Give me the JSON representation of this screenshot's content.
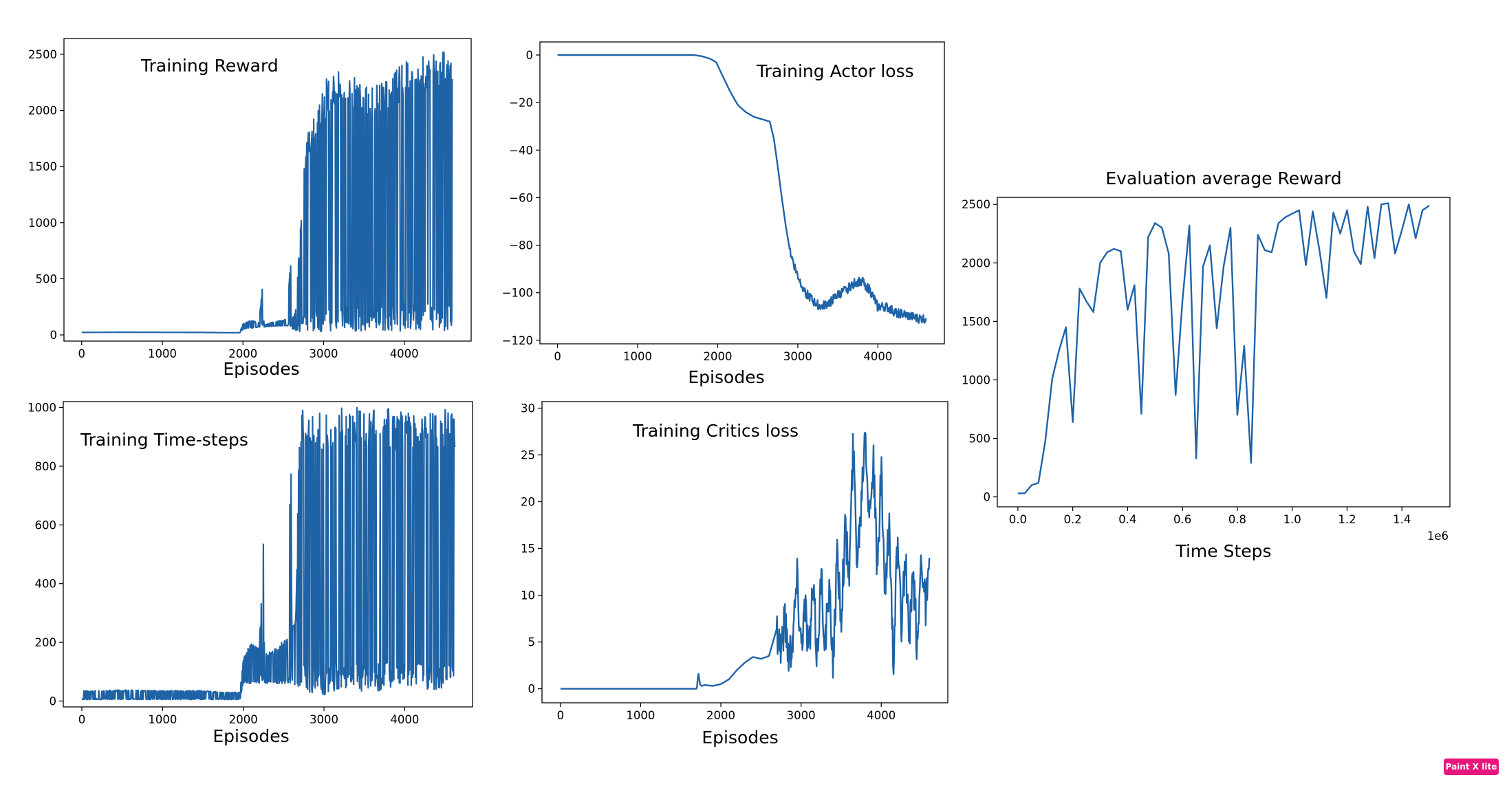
{
  "watermark": "Paint X lite",
  "line_color": "#1f63a7",
  "chart_data": [
    {
      "id": "reward",
      "type": "line",
      "title": "Training Reward",
      "xlabel": "Episodes",
      "ylabel": "",
      "xlim": [
        -220,
        4830
      ],
      "ylim": [
        -55,
        2640
      ],
      "xticks": [
        0,
        1000,
        2000,
        3000,
        4000
      ],
      "yticks": [
        0,
        500,
        1000,
        1500,
        2000,
        2500
      ],
      "xtick_labels": [
        "0",
        "1000",
        "2000",
        "3000",
        "4000"
      ],
      "ytick_labels": [
        "0",
        "500",
        "1000",
        "1500",
        "2000",
        "2500"
      ],
      "series": [
        {
          "x": [
            0,
            500,
            1000,
            1500,
            1750,
            1960,
            2000,
            2100,
            2200,
            2250,
            2260,
            2400,
            2550,
            2590,
            2600,
            2650,
            2700,
            2750,
            2800,
            2900,
            3000,
            3050,
            3100,
            3200,
            3300,
            3400,
            3500,
            3600,
            3700,
            3800,
            3900,
            4000,
            4100,
            4200,
            4300,
            4400,
            4500,
            4600
          ],
          "y": [
            22,
            24,
            23,
            22,
            20,
            20,
            100,
            130,
            110,
            500,
            90,
            120,
            140,
            770,
            150,
            200,
            800,
            1500,
            1800,
            2000,
            2200,
            2330,
            2330,
            2350,
            2300,
            2320,
            2280,
            2290,
            2300,
            2340,
            2380,
            2450,
            2460,
            2480,
            2510,
            2530,
            2560,
            2540
          ],
          "y_low": [
            22,
            24,
            23,
            22,
            20,
            20,
            50,
            60,
            70,
            80,
            70,
            80,
            80,
            70,
            60,
            40,
            30,
            25,
            20,
            25,
            30,
            40,
            35,
            30,
            40,
            30,
            30,
            35,
            30,
            40,
            30,
            40,
            50,
            30,
            40,
            40,
            30,
            80
          ]
        }
      ]
    },
    {
      "id": "actor",
      "type": "line",
      "title": "Training Actor loss",
      "xlabel": "Episodes",
      "ylabel": "",
      "xlim": [
        -220,
        4830
      ],
      "ylim": [
        -121.5,
        5.5
      ],
      "xticks": [
        0,
        1000,
        2000,
        3000,
        4000
      ],
      "yticks": [
        0,
        -20,
        -40,
        -60,
        -80,
        -100,
        -120
      ],
      "xtick_labels": [
        "0",
        "1000",
        "2000",
        "3000",
        "4000"
      ],
      "ytick_labels": [
        "0",
        "−20",
        "−40",
        "−60",
        "−80",
        "−100",
        "−120"
      ],
      "series": [
        {
          "x": [
            0,
            1000,
            1700,
            1800,
            1900,
            1980,
            2050,
            2150,
            2250,
            2350,
            2450,
            2550,
            2650,
            2700,
            2750,
            2800,
            2850,
            2900,
            2950,
            3000,
            3100,
            3200,
            3300,
            3400,
            3500,
            3600,
            3700,
            3800,
            3900,
            4000,
            4100,
            4200,
            4300,
            4400,
            4500,
            4600
          ],
          "y": [
            0,
            0,
            0,
            -0.5,
            -1.5,
            -3,
            -8,
            -15,
            -21,
            -24,
            -26,
            -27,
            -28,
            -35,
            -47,
            -60,
            -72,
            -82,
            -88,
            -93,
            -100,
            -104,
            -106,
            -104,
            -101,
            -99,
            -96,
            -95,
            -99,
            -106,
            -106,
            -108,
            -109,
            -110,
            -111,
            -111
          ]
        }
      ]
    },
    {
      "id": "timesteps",
      "type": "line",
      "title": "Training Time-steps",
      "xlabel": "Episodes",
      "ylabel": "",
      "xlim": [
        -230,
        4840
      ],
      "ylim": [
        -20,
        1020
      ],
      "xticks": [
        0,
        1000,
        2000,
        3000,
        4000
      ],
      "yticks": [
        0,
        200,
        400,
        600,
        800,
        1000
      ],
      "xtick_labels": [
        "0",
        "1000",
        "2000",
        "3000",
        "4000"
      ],
      "ytick_labels": [
        "0",
        "200",
        "400",
        "600",
        "800",
        "1000"
      ],
      "series": [
        {
          "x": [
            0,
            500,
            1000,
            1500,
            1750,
            1960,
            2000,
            2100,
            2200,
            2250,
            2260,
            2400,
            2550,
            2590,
            2600,
            2650,
            2700,
            2800,
            2900,
            3000,
            3100,
            3200,
            3300,
            3400,
            3500,
            3600,
            3700,
            3800,
            3900,
            4000,
            4100,
            4200,
            4300,
            4400,
            4500,
            4620
          ],
          "y": [
            35,
            38,
            36,
            36,
            30,
            30,
            150,
            200,
            180,
            600,
            160,
            180,
            220,
            950,
            240,
            300,
            1000,
            1000,
            1000,
            1000,
            1000,
            1000,
            1000,
            1000,
            1000,
            1000,
            1000,
            1000,
            1000,
            1000,
            1000,
            1000,
            1000,
            1000,
            1000,
            1000
          ],
          "y_low": [
            5,
            5,
            5,
            5,
            5,
            5,
            60,
            60,
            60,
            60,
            60,
            60,
            60,
            60,
            60,
            40,
            40,
            30,
            20,
            20,
            30,
            40,
            30,
            40,
            30,
            40,
            30,
            40,
            40,
            30,
            40,
            40,
            40,
            40,
            40,
            60
          ]
        }
      ]
    },
    {
      "id": "critics",
      "type": "line",
      "title": "Training Critics loss",
      "xlabel": "Episodes",
      "ylabel": "",
      "xlim": [
        -230,
        4830
      ],
      "ylim": [
        -1.5,
        30.7
      ],
      "xticks": [
        0,
        1000,
        2000,
        3000,
        4000
      ],
      "yticks": [
        0,
        5,
        10,
        15,
        20,
        25,
        30
      ],
      "xtick_labels": [
        "0",
        "1000",
        "2000",
        "3000",
        "4000"
      ],
      "ytick_labels": [
        "0",
        "5",
        "10",
        "15",
        "20",
        "25",
        "30"
      ],
      "series": [
        {
          "x": [
            0,
            1000,
            1700,
            1720,
            1740,
            1760,
            1800,
            1900,
            2000,
            2100,
            2200,
            2300,
            2400,
            2500,
            2600,
            2700,
            2750,
            2800,
            2850,
            2900,
            2950,
            3000,
            3050,
            3100,
            3150,
            3200,
            3250,
            3300,
            3350,
            3400,
            3450,
            3500,
            3550,
            3600,
            3650,
            3700,
            3750,
            3800,
            3850,
            3900,
            3950,
            4000,
            4050,
            4100,
            4150,
            4200,
            4250,
            4300,
            4350,
            4400,
            4450,
            4500,
            4550,
            4600
          ],
          "y": [
            0,
            0,
            0,
            1.7,
            0.5,
            0.3,
            0.4,
            0.3,
            0.5,
            1.0,
            2.0,
            2.8,
            3.4,
            3.2,
            3.5,
            6.5,
            4.5,
            7.5,
            3.5,
            6.0,
            12.0,
            5.0,
            9.0,
            4.0,
            10.5,
            3.5,
            12.0,
            5.0,
            10.0,
            3.0,
            14.0,
            8.0,
            17.0,
            12.0,
            26.0,
            14.0,
            20.0,
            29.0,
            18.0,
            25.0,
            12.0,
            23.0,
            9.0,
            18.0,
            3.0,
            15.0,
            7.0,
            14.0,
            5.0,
            12.0,
            4.0,
            15.0,
            9.0,
            12.0
          ]
        }
      ]
    },
    {
      "id": "eval",
      "type": "line",
      "title": "Evaluation average Reward",
      "xlabel": "Time Steps",
      "ylabel": "",
      "offset_text": "1e6",
      "xlim": [
        -0.075,
        1.575
      ],
      "ylim": [
        -85,
        2560
      ],
      "xticks": [
        0.0,
        0.2,
        0.4,
        0.6,
        0.8,
        1.0,
        1.2,
        1.4
      ],
      "yticks": [
        0,
        500,
        1000,
        1500,
        2000,
        2500
      ],
      "xtick_labels": [
        "0.0",
        "0.2",
        "0.4",
        "0.6",
        "0.8",
        "1.0",
        "1.2",
        "1.4"
      ],
      "ytick_labels": [
        "0",
        "500",
        "1000",
        "1500",
        "2000",
        "2500"
      ],
      "series": [
        {
          "x": [
            0.0,
            0.025,
            0.05,
            0.075,
            0.1,
            0.125,
            0.15,
            0.175,
            0.2,
            0.225,
            0.25,
            0.275,
            0.3,
            0.325,
            0.35,
            0.375,
            0.4,
            0.425,
            0.45,
            0.475,
            0.5,
            0.525,
            0.55,
            0.575,
            0.6,
            0.625,
            0.65,
            0.675,
            0.7,
            0.725,
            0.75,
            0.775,
            0.8,
            0.825,
            0.85,
            0.875,
            0.9,
            0.925,
            0.95,
            0.975,
            1.0,
            1.025,
            1.05,
            1.075,
            1.1,
            1.125,
            1.15,
            1.175,
            1.2,
            1.225,
            1.25,
            1.275,
            1.3,
            1.325,
            1.35,
            1.375,
            1.4,
            1.425,
            1.45,
            1.475,
            1.5
          ],
          "y": [
            30,
            30,
            100,
            120,
            480,
            1010,
            1250,
            1450,
            640,
            1780,
            1670,
            1580,
            2000,
            2090,
            2120,
            2100,
            1600,
            1810,
            710,
            2220,
            2340,
            2300,
            2080,
            870,
            1680,
            2320,
            330,
            1970,
            2150,
            1440,
            1970,
            2300,
            700,
            1290,
            290,
            2240,
            2110,
            2090,
            2340,
            2390,
            2420,
            2450,
            1980,
            2440,
            2100,
            1700,
            2430,
            2250,
            2450,
            2100,
            1990,
            2480,
            2040,
            2500,
            2510,
            2080,
            2280,
            2500,
            2210,
            2450,
            2490
          ]
        }
      ]
    }
  ]
}
